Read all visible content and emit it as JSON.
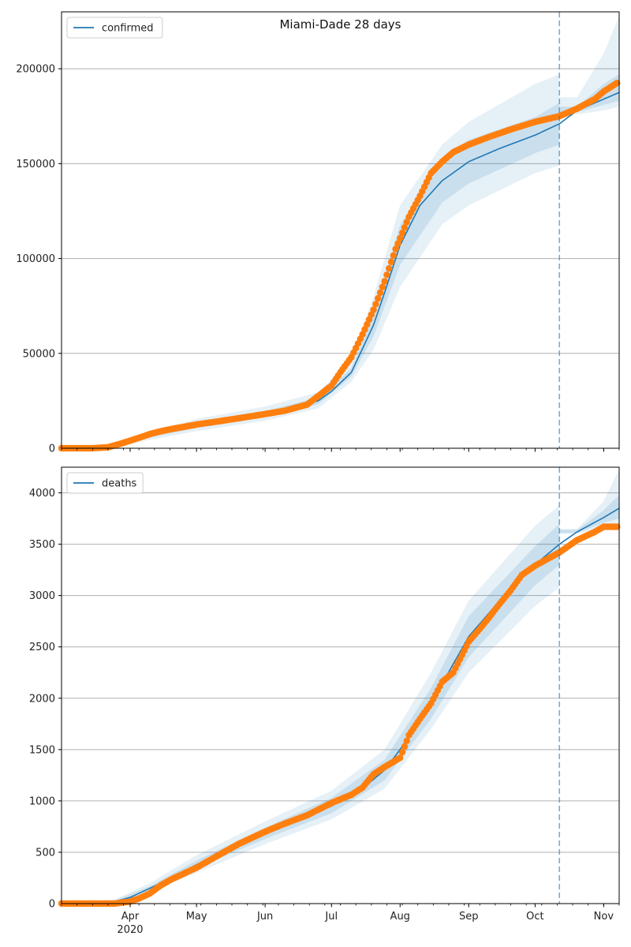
{
  "chart_data": [
    {
      "type": "line",
      "title": "Miami-Dade 28 days",
      "xlabel": "",
      "ylabel": "",
      "x_axis": {
        "type": "date",
        "range": [
          "2020-03-01",
          "2020-11-08"
        ],
        "major_ticks": [
          "2020-04-01",
          "2020-05-01",
          "2020-06-01",
          "2020-07-01",
          "2020-08-01",
          "2020-09-01",
          "2020-10-01",
          "2020-11-01"
        ],
        "tick_labels": [
          "Apr",
          "May",
          "Jun",
          "Jul",
          "Aug",
          "Sep",
          "Oct",
          "Nov"
        ],
        "year_label": "2020",
        "year_label_under": "Apr",
        "labels_shown": false
      },
      "ylim": [
        0,
        230000
      ],
      "yticks": [
        0,
        50000,
        100000,
        150000,
        200000
      ],
      "grid": "horizontal",
      "legend": {
        "placement": "upper-left",
        "entries": [
          "confirmed"
        ]
      },
      "forecast_start": "2020-10-12",
      "colors": {
        "line": "#1f77b4",
        "band": "#1f77b4",
        "points": "#ff7f0e",
        "vline": "#1f77b4"
      },
      "series": [
        {
          "name": "confirmed",
          "kind": "fit-line",
          "x": [
            "2020-03-01",
            "2020-03-15",
            "2020-03-25",
            "2020-04-01",
            "2020-04-10",
            "2020-04-20",
            "2020-05-01",
            "2020-05-15",
            "2020-06-01",
            "2020-06-15",
            "2020-06-25",
            "2020-07-01",
            "2020-07-10",
            "2020-07-20",
            "2020-07-25",
            "2020-08-01",
            "2020-08-10",
            "2020-08-20",
            "2020-09-01",
            "2020-09-15",
            "2020-10-01",
            "2020-10-12",
            "2020-10-20",
            "2020-11-01",
            "2020-11-08"
          ],
          "y": [
            0,
            100,
            800,
            3000,
            6500,
            9500,
            12000,
            15000,
            18000,
            21500,
            25000,
            30000,
            40000,
            65000,
            82000,
            107000,
            128000,
            141000,
            151000,
            158000,
            165000,
            171000,
            178000,
            184000,
            187500
          ]
        },
        {
          "name": "",
          "kind": "observed-points",
          "x": [
            "2020-03-01",
            "2020-03-15",
            "2020-03-22",
            "2020-03-28",
            "2020-04-01",
            "2020-04-05",
            "2020-04-10",
            "2020-04-15",
            "2020-04-20",
            "2020-04-25",
            "2020-05-01",
            "2020-05-10",
            "2020-05-20",
            "2020-06-01",
            "2020-06-10",
            "2020-06-20",
            "2020-06-25",
            "2020-07-01",
            "2020-07-05",
            "2020-07-10",
            "2020-07-15",
            "2020-07-20",
            "2020-07-25",
            "2020-07-30",
            "2020-08-05",
            "2020-08-10",
            "2020-08-15",
            "2020-08-20",
            "2020-08-25",
            "2020-09-01",
            "2020-09-10",
            "2020-09-20",
            "2020-10-01",
            "2020-10-12",
            "2020-10-20",
            "2020-10-28",
            "2020-11-01",
            "2020-11-05",
            "2020-11-07"
          ],
          "y": [
            0,
            0,
            500,
            2500,
            4000,
            5500,
            7500,
            9000,
            10200,
            11200,
            12500,
            14000,
            15800,
            18000,
            19800,
            23000,
            27500,
            33000,
            40000,
            48000,
            60000,
            73000,
            88000,
            105000,
            122000,
            133000,
            145000,
            151000,
            156000,
            160000,
            164000,
            168000,
            172000,
            175000,
            179000,
            184000,
            188000,
            191000,
            192500
          ]
        },
        {
          "name": "",
          "kind": "interval-band-outer",
          "x": [
            "2020-03-01",
            "2020-03-25",
            "2020-04-10",
            "2020-05-01",
            "2020-06-01",
            "2020-06-25",
            "2020-07-10",
            "2020-07-20",
            "2020-08-01",
            "2020-08-20",
            "2020-09-01",
            "2020-10-01",
            "2020-10-12",
            "2020-10-20",
            "2020-11-01",
            "2020-11-08"
          ],
          "low": [
            0,
            400,
            4500,
            9000,
            14500,
            21000,
            35000,
            52000,
            85000,
            118000,
            128000,
            145000,
            149000,
            176000,
            178000,
            180000
          ],
          "high": [
            0,
            1200,
            8500,
            15500,
            22000,
            29500,
            47000,
            80000,
            128000,
            160000,
            172000,
            192000,
            197000,
            185000,
            208000,
            228000
          ]
        },
        {
          "name": "",
          "kind": "interval-band-inner",
          "x": [
            "2020-03-01",
            "2020-03-25",
            "2020-04-10",
            "2020-05-01",
            "2020-06-01",
            "2020-06-25",
            "2020-07-10",
            "2020-07-20",
            "2020-08-01",
            "2020-08-20",
            "2020-09-01",
            "2020-10-01",
            "2020-10-12",
            "2020-10-20",
            "2020-11-01",
            "2020-11-08"
          ],
          "low": [
            0,
            650,
            5600,
            10700,
            16400,
            23200,
            37800,
            59000,
            96500,
            129500,
            139500,
            155500,
            160000,
            177000,
            181000,
            183000
          ],
          "high": [
            0,
            950,
            7400,
            13300,
            19600,
            26800,
            42200,
            71000,
            117500,
            152500,
            162500,
            174500,
            182000,
            180000,
            192000,
            197000
          ]
        }
      ]
    },
    {
      "type": "line",
      "title": "",
      "xlabel": "",
      "ylabel": "",
      "x_axis": {
        "type": "date",
        "range": [
          "2020-03-01",
          "2020-11-08"
        ],
        "major_ticks": [
          "2020-04-01",
          "2020-05-01",
          "2020-06-01",
          "2020-07-01",
          "2020-08-01",
          "2020-09-01",
          "2020-10-01",
          "2020-11-01"
        ],
        "tick_labels": [
          "Apr",
          "May",
          "Jun",
          "Jul",
          "Aug",
          "Sep",
          "Oct",
          "Nov"
        ],
        "year_label": "2020",
        "year_label_under": "Apr",
        "labels_shown": true
      },
      "ylim": [
        0,
        4250
      ],
      "yticks": [
        0,
        500,
        1000,
        1500,
        2000,
        2500,
        3000,
        3500,
        4000
      ],
      "grid": "horizontal",
      "legend": {
        "placement": "upper-left",
        "entries": [
          "deaths"
        ]
      },
      "forecast_start": "2020-10-12",
      "colors": {
        "line": "#1f77b4",
        "band": "#1f77b4",
        "points": "#ff7f0e",
        "vline": "#1f77b4"
      },
      "series": [
        {
          "name": "deaths",
          "kind": "fit-line",
          "x": [
            "2020-03-01",
            "2020-03-15",
            "2020-03-25",
            "2020-04-01",
            "2020-04-10",
            "2020-04-20",
            "2020-05-01",
            "2020-05-15",
            "2020-06-01",
            "2020-06-15",
            "2020-07-01",
            "2020-07-15",
            "2020-07-25",
            "2020-08-01",
            "2020-08-15",
            "2020-09-01",
            "2020-09-15",
            "2020-10-01",
            "2020-10-12",
            "2020-10-20",
            "2020-11-01",
            "2020-11-08"
          ],
          "y": [
            0,
            0,
            20,
            60,
            150,
            250,
            380,
            520,
            680,
            800,
            950,
            1120,
            1300,
            1500,
            1950,
            2600,
            2950,
            3300,
            3500,
            3620,
            3760,
            3850
          ]
        },
        {
          "name": "",
          "kind": "observed-points",
          "x": [
            "2020-03-01",
            "2020-03-25",
            "2020-04-01",
            "2020-04-05",
            "2020-04-10",
            "2020-04-15",
            "2020-04-20",
            "2020-04-25",
            "2020-05-01",
            "2020-05-10",
            "2020-05-20",
            "2020-06-01",
            "2020-06-10",
            "2020-06-20",
            "2020-07-01",
            "2020-07-10",
            "2020-07-15",
            "2020-07-20",
            "2020-07-25",
            "2020-08-01",
            "2020-08-05",
            "2020-08-10",
            "2020-08-15",
            "2020-08-20",
            "2020-08-25",
            "2020-09-01",
            "2020-09-05",
            "2020-09-10",
            "2020-09-15",
            "2020-09-20",
            "2020-09-25",
            "2020-10-01",
            "2020-10-12",
            "2020-10-20",
            "2020-10-28",
            "2020-11-01",
            "2020-11-07"
          ],
          "y": [
            0,
            0,
            20,
            50,
            100,
            180,
            240,
            290,
            350,
            460,
            580,
            700,
            780,
            860,
            980,
            1060,
            1130,
            1260,
            1330,
            1420,
            1640,
            1800,
            1950,
            2160,
            2250,
            2550,
            2650,
            2780,
            2920,
            3050,
            3200,
            3290,
            3420,
            3540,
            3620,
            3670,
            3670
          ]
        },
        {
          "name": "",
          "kind": "interval-band-outer",
          "x": [
            "2020-03-01",
            "2020-03-25",
            "2020-04-10",
            "2020-05-01",
            "2020-06-01",
            "2020-07-01",
            "2020-07-25",
            "2020-08-15",
            "2020-09-01",
            "2020-10-01",
            "2020-10-12",
            "2020-10-20",
            "2020-11-01",
            "2020-11-08"
          ],
          "low": [
            0,
            0,
            110,
            300,
            580,
            820,
            1120,
            1700,
            2250,
            2900,
            3080,
            3600,
            3660,
            3660
          ],
          "high": [
            0,
            40,
            200,
            470,
            800,
            1100,
            1500,
            2250,
            2950,
            3680,
            3880,
            3650,
            3920,
            4230
          ]
        },
        {
          "name": "",
          "kind": "interval-band-inner",
          "x": [
            "2020-03-01",
            "2020-03-25",
            "2020-04-10",
            "2020-05-01",
            "2020-06-01",
            "2020-07-01",
            "2020-07-25",
            "2020-08-15",
            "2020-09-01",
            "2020-10-01",
            "2020-10-12",
            "2020-10-20",
            "2020-11-01",
            "2020-11-08"
          ],
          "low": [
            0,
            0,
            135,
            345,
            630,
            880,
            1200,
            1800,
            2400,
            3100,
            3300,
            3610,
            3710,
            3750
          ],
          "high": [
            0,
            30,
            170,
            420,
            740,
            1030,
            1400,
            2100,
            2800,
            3480,
            3700,
            3640,
            3830,
            3980
          ]
        }
      ]
    }
  ]
}
